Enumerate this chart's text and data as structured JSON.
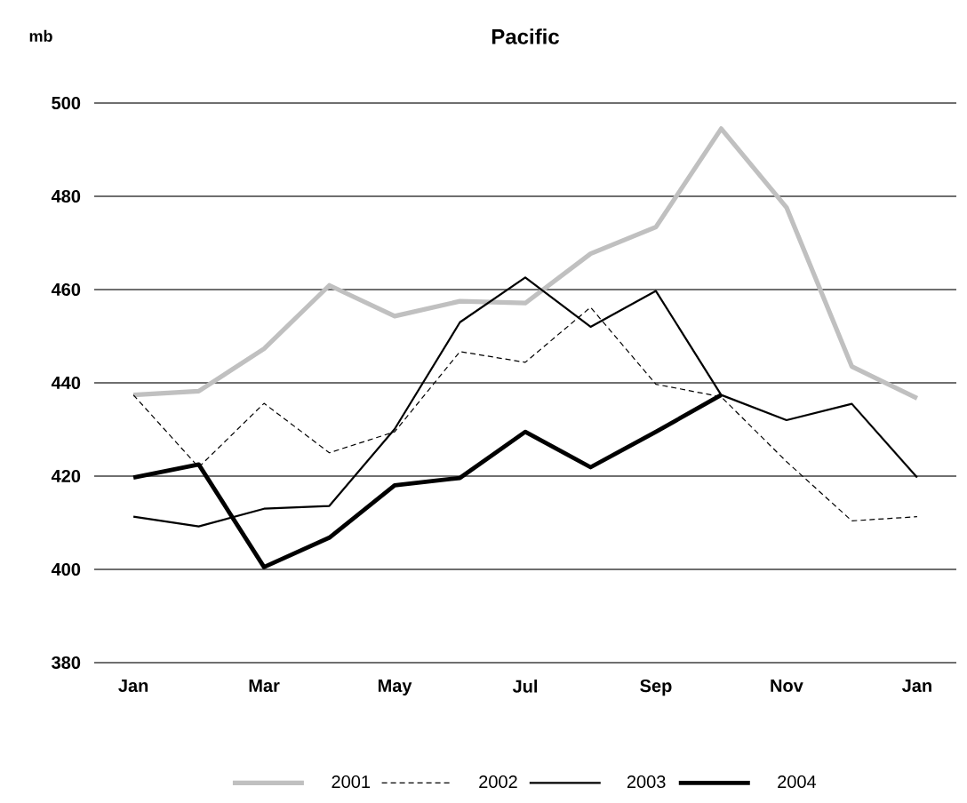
{
  "chart_data": {
    "type": "line",
    "title": "Pacific",
    "ylabel": "mb",
    "categories": [
      "Jan",
      null,
      "Mar",
      null,
      "May",
      null,
      "Jul",
      null,
      "Sep",
      null,
      "Nov",
      null,
      "Jan"
    ],
    "series": [
      {
        "name": "2001",
        "color": "#c0c0c0",
        "line_style": "solid",
        "values": [
          437.4,
          438.2,
          447.3,
          460.9,
          454.3,
          457.5,
          457.1,
          467.7,
          473.4,
          494.5,
          477.6,
          443.5,
          436.7
        ]
      },
      {
        "name": "2002",
        "color": "#000000",
        "line_style": "dashed",
        "values": [
          437.4,
          421.9,
          435.6,
          425,
          429.5,
          446.7,
          444.4,
          456.2,
          439.7,
          437,
          423.1,
          410.4,
          411.3
        ]
      },
      {
        "name": "2003",
        "color": "#000000",
        "line_style": "solid",
        "values": [
          411.3,
          409.2,
          413,
          413.6,
          430.1,
          453,
          462.6,
          452,
          459.7,
          437.4,
          432,
          435.5,
          419.7
        ]
      },
      {
        "name": "2004",
        "color": "#000000",
        "line_style": "solid",
        "values": [
          419.7,
          422.5,
          400.5,
          406.8,
          418,
          419.6,
          429.5,
          421.9,
          429.5,
          437.4,
          null,
          null,
          null
        ]
      }
    ],
    "ylim": [
      380,
      500
    ],
    "yticks": [
      380,
      400,
      420,
      440,
      460,
      480,
      500
    ],
    "grid": "y",
    "legend": "bottom",
    "marker": "none"
  }
}
